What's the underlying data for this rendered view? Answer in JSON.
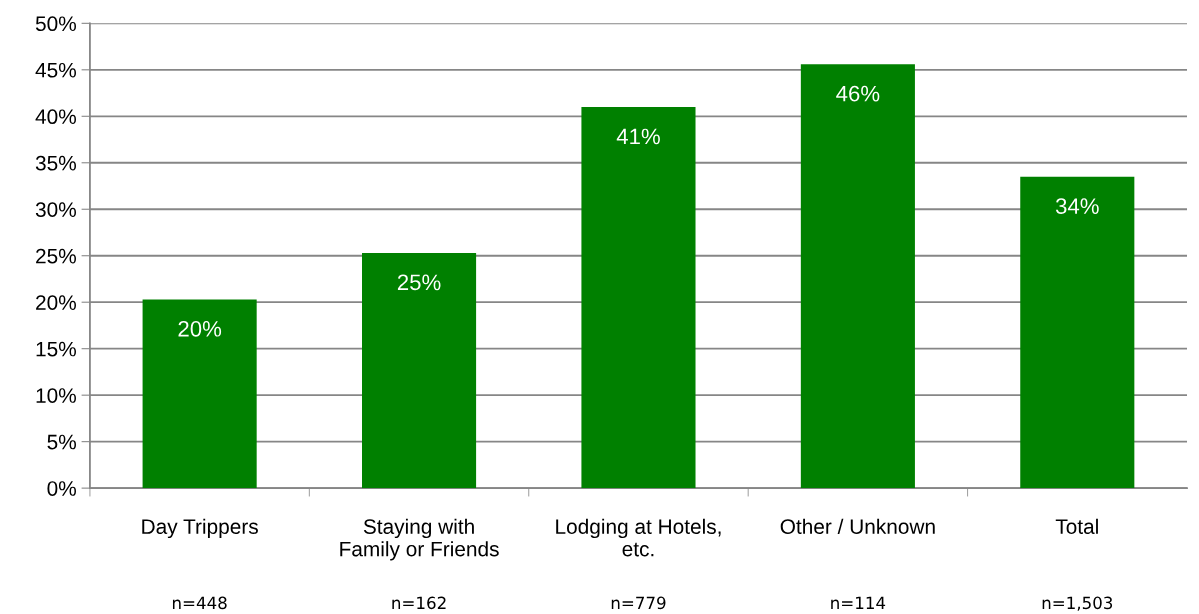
{
  "chart_data": {
    "type": "bar",
    "categories": [
      "Day Trippers",
      "Staying with\nFamily or Friends",
      "Lodging at Hotels,\netc.",
      "Other / Unknown",
      "Total"
    ],
    "values": [
      20.3,
      25.3,
      41.0,
      45.6,
      33.5
    ],
    "value_labels": [
      "20%",
      "25%",
      "41%",
      "46%",
      "34%"
    ],
    "color": "#008000",
    "ylim": [
      0,
      50
    ],
    "yticks": [
      {
        "value": 0,
        "label": "0%"
      },
      {
        "value": 5,
        "label": "5%"
      },
      {
        "value": 10,
        "label": "10%"
      },
      {
        "value": 15,
        "label": "15%"
      },
      {
        "value": 20,
        "label": "20%"
      },
      {
        "value": 25,
        "label": "25%"
      },
      {
        "value": 30,
        "label": "30%"
      },
      {
        "value": 35,
        "label": "35%"
      },
      {
        "value": 40,
        "label": "40%"
      },
      {
        "value": 45,
        "label": "45%"
      },
      {
        "value": 50,
        "label": "50%"
      }
    ],
    "grid": "y",
    "annotations": [
      "n=448",
      "n=162",
      "n=779",
      "n=114",
      "n=1,503"
    ]
  }
}
